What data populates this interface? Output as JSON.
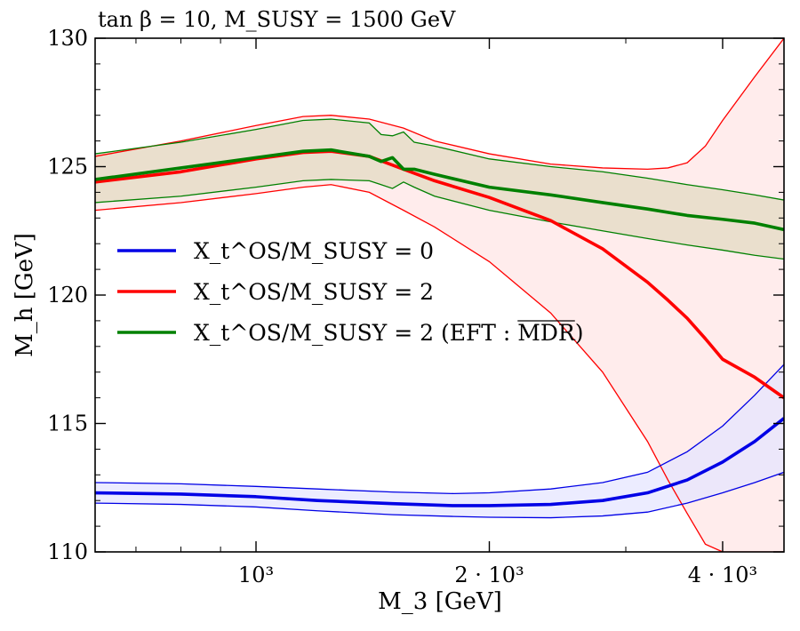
{
  "chart_data": {
    "type": "line",
    "title": "tan β = 10, M_SUSY = 1500 GeV",
    "xlabel": "M_3 [GeV]",
    "ylabel": "M_h [GeV]",
    "xscale": "log",
    "xlim": [
      620,
      4800
    ],
    "ylim": [
      110,
      130
    ],
    "grid": false,
    "legend_position": "center-left",
    "x_ticks": [
      {
        "value": 1000,
        "label": "10³"
      },
      {
        "value": 2000,
        "label": "2 · 10³"
      },
      {
        "value": 4000,
        "label": "4 · 10³"
      }
    ],
    "y_ticks": [
      {
        "value": 110,
        "label": "110"
      },
      {
        "value": 115,
        "label": "115"
      },
      {
        "value": 120,
        "label": "120"
      },
      {
        "value": 125,
        "label": "125"
      },
      {
        "value": 130,
        "label": "130"
      }
    ],
    "series": [
      {
        "name": "X_t^OS/M_SUSY = 0",
        "color": "#0000e6",
        "band_color": "#e6e6ff",
        "x": [
          620,
          800,
          1000,
          1200,
          1500,
          1800,
          2000,
          2400,
          2800,
          3200,
          3600,
          4000,
          4400,
          4800
        ],
        "central": [
          112.3,
          112.25,
          112.15,
          112.0,
          111.88,
          111.8,
          111.8,
          111.85,
          112.0,
          112.3,
          112.8,
          113.5,
          114.3,
          115.2
        ],
        "upper": [
          112.7,
          112.65,
          112.55,
          112.45,
          112.33,
          112.27,
          112.3,
          112.45,
          112.7,
          113.1,
          113.9,
          114.9,
          116.1,
          117.3
        ],
        "lower": [
          111.9,
          111.85,
          111.75,
          111.6,
          111.45,
          111.38,
          111.35,
          111.33,
          111.4,
          111.55,
          111.9,
          112.3,
          112.7,
          113.1
        ]
      },
      {
        "name": "X_t^OS/M_SUSY = 2",
        "color": "#ff0000",
        "band_color": "#ffe6e6",
        "x": [
          620,
          800,
          1000,
          1150,
          1250,
          1400,
          1550,
          1700,
          2000,
          2400,
          2800,
          3200,
          3400,
          3600,
          3800,
          4000,
          4400,
          4800
        ],
        "central": [
          124.4,
          124.8,
          125.3,
          125.55,
          125.6,
          125.4,
          124.9,
          124.45,
          123.8,
          122.9,
          121.8,
          120.5,
          119.8,
          119.1,
          118.3,
          117.5,
          116.8,
          116.0
        ],
        "upper": [
          125.4,
          126.0,
          126.6,
          126.95,
          127.0,
          126.85,
          126.5,
          126.0,
          125.5,
          125.1,
          124.95,
          124.9,
          124.95,
          125.15,
          125.8,
          126.8,
          128.5,
          130.0
        ],
        "lower": [
          123.3,
          123.6,
          123.95,
          124.2,
          124.3,
          124.0,
          123.3,
          122.65,
          121.3,
          119.3,
          117.0,
          114.3,
          112.8,
          111.5,
          110.3,
          110.0,
          110.0,
          110.0
        ]
      },
      {
        "name": "X_t^OS/M_SUSY = 2 (EFT : MDR)",
        "overline_part": "MDR",
        "color": "#008000",
        "band_color": "#e6ddc8",
        "x": [
          620,
          800,
          1000,
          1150,
          1250,
          1400,
          1450,
          1500,
          1550,
          1600,
          1700,
          2000,
          2400,
          2800,
          3200,
          3600,
          4000,
          4400,
          4800
        ],
        "central": [
          124.5,
          124.95,
          125.35,
          125.6,
          125.65,
          125.4,
          125.2,
          125.35,
          124.9,
          124.9,
          124.7,
          124.2,
          123.9,
          123.6,
          123.35,
          123.1,
          122.95,
          122.8,
          122.55
        ],
        "upper": [
          125.5,
          125.95,
          126.45,
          126.8,
          126.85,
          126.7,
          126.25,
          126.2,
          126.35,
          125.95,
          125.8,
          125.3,
          125.0,
          124.8,
          124.55,
          124.3,
          124.1,
          123.9,
          123.7
        ],
        "lower": [
          123.6,
          123.85,
          124.2,
          124.45,
          124.5,
          124.45,
          124.3,
          124.15,
          124.4,
          124.2,
          123.85,
          123.3,
          122.85,
          122.5,
          122.2,
          121.95,
          121.75,
          121.55,
          121.4
        ]
      }
    ]
  }
}
